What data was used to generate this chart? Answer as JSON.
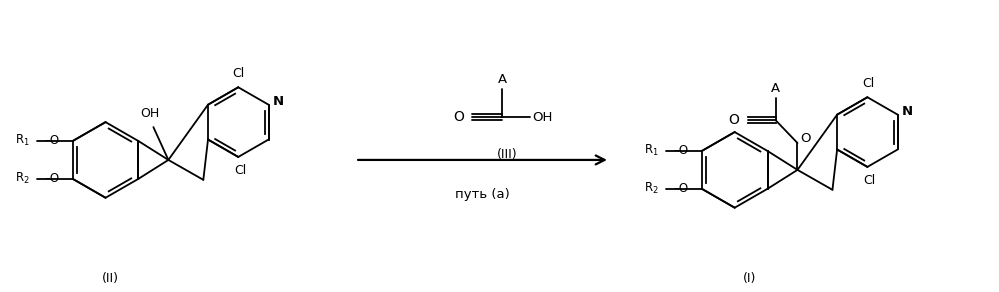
{
  "bg_color": "#ffffff",
  "figsize": [
    9.99,
    2.92
  ],
  "dpi": 100,
  "label_II": "(II)",
  "label_I": "(I)",
  "label_III": "(III)",
  "arrow_label": "путь (a)"
}
